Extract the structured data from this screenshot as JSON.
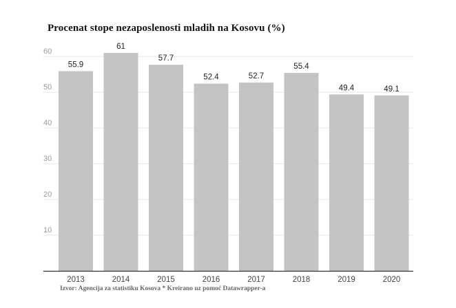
{
  "chart_data": {
    "type": "bar",
    "title": "Procenat stope nezaposlenosti mladih na Kosovu (%)",
    "xlabel": "",
    "ylabel": "",
    "categories": [
      "2013",
      "2014",
      "2015",
      "2016",
      "2017",
      "2018",
      "2019",
      "2020"
    ],
    "values": [
      55.9,
      61,
      57.7,
      52.4,
      52.7,
      55.4,
      49.4,
      49.1
    ],
    "data_labels": [
      "55.9",
      "61",
      "57.7",
      "52.4",
      "52.7",
      "55.4",
      "49.4",
      "49.1"
    ],
    "yticks": [
      10,
      20,
      30,
      40,
      50,
      60
    ],
    "ylim": [
      0,
      61
    ],
    "grid": true,
    "legend": "none",
    "bar_color": "#c4c4c4",
    "source": "Izvor: Agencija za statistiku Kosova * Kreirano uz pomoć Datawrapper-a"
  }
}
